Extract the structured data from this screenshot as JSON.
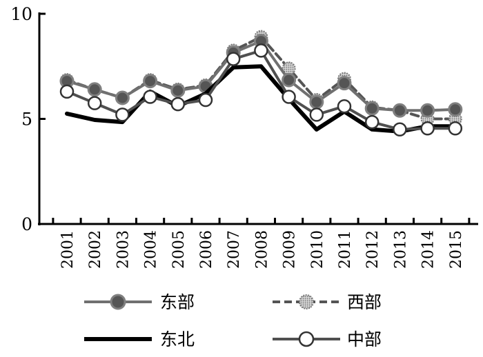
{
  "chart_data": {
    "type": "line",
    "title": "",
    "xlabel": "",
    "ylabel": "",
    "ylim": [
      0,
      10
    ],
    "yticks": [
      0,
      5,
      10
    ],
    "x": [
      "2001",
      "2002",
      "2003",
      "2004",
      "2005",
      "2006",
      "2007",
      "2008",
      "2009",
      "2010",
      "2011",
      "2012",
      "2013",
      "2014",
      "2015"
    ],
    "grid": false,
    "legend_position": "bottom",
    "series": [
      {
        "name": "东部",
        "color": "#707070",
        "line_style": "solid",
        "marker": "filled-circle-dark",
        "values": [
          6.8,
          6.4,
          6.0,
          6.8,
          6.35,
          6.55,
          8.15,
          8.7,
          6.85,
          5.8,
          6.7,
          5.5,
          5.4,
          5.4,
          5.45
        ]
      },
      {
        "name": "西部",
        "color": "#555555",
        "line_style": "dashed",
        "marker": "dotted-circle",
        "values": [
          6.85,
          6.4,
          6.0,
          6.85,
          6.4,
          6.6,
          8.25,
          8.9,
          7.4,
          5.9,
          6.9,
          5.55,
          5.4,
          5.0,
          5.0
        ]
      },
      {
        "name": "东北",
        "color": "#000000",
        "line_style": "solid-thick",
        "marker": "none",
        "values": [
          5.25,
          4.95,
          4.85,
          6.3,
          5.6,
          6.2,
          7.45,
          7.5,
          5.95,
          4.5,
          5.35,
          4.5,
          4.4,
          4.65,
          4.65
        ]
      },
      {
        "name": "中部",
        "color": "#505050",
        "line_style": "solid",
        "marker": "open-circle",
        "values": [
          6.3,
          5.75,
          5.2,
          6.05,
          5.7,
          5.9,
          7.85,
          8.25,
          6.05,
          5.2,
          5.6,
          4.85,
          4.5,
          4.55,
          4.55
        ]
      }
    ]
  }
}
